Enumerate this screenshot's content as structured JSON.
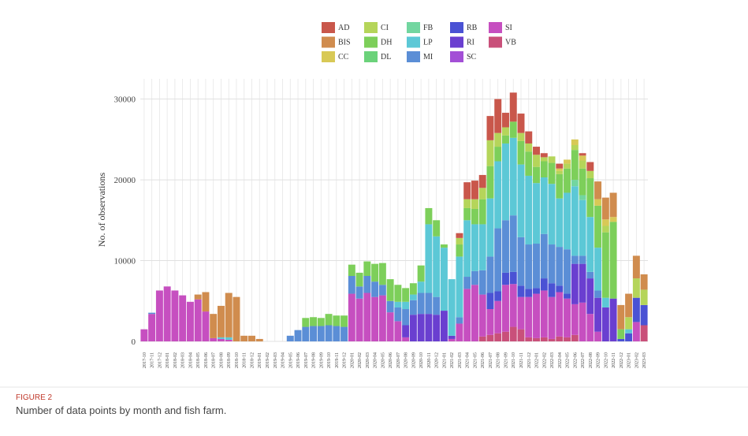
{
  "chart_data": {
    "type": "stacked_bar",
    "y_label": "No. of observations",
    "figure_label": "FIGURE 2",
    "caption": "Number of data points by month and fish farm.",
    "categories": [
      "2017-10",
      "2017-11",
      "2017-12",
      "2018-01",
      "2018-02",
      "2018-03",
      "2018-04",
      "2018-05",
      "2018-06",
      "2018-07",
      "2018-08",
      "2018-09",
      "2018-10",
      "2018-11",
      "2018-12",
      "2019-01",
      "2019-02",
      "2019-03",
      "2019-04",
      "2019-05",
      "2019-06",
      "2019-07",
      "2019-08",
      "2019-09",
      "2019-10",
      "2019-11",
      "2019-12",
      "2020-01",
      "2020-02",
      "2020-03",
      "2020-04",
      "2020-05",
      "2020-06",
      "2020-07",
      "2020-08",
      "2020-09",
      "2020-10",
      "2020-11",
      "2020-12",
      "2021-01",
      "2021-02",
      "2021-03",
      "2021-04",
      "2021-05",
      "2021-06",
      "2021-07",
      "2021-08",
      "2021-09",
      "2021-10",
      "2021-11",
      "2021-12",
      "2022-01",
      "2022-02",
      "2022-03",
      "2022-04",
      "2022-05",
      "2022-06",
      "2022-07",
      "2022-08",
      "2022-09",
      "2022-10",
      "2022-11",
      "2022-12",
      "2023-01",
      "2023-02",
      "2023-03"
    ],
    "ylim": [
      0,
      32500
    ],
    "yticks": [
      0,
      10000,
      20000,
      30000
    ],
    "grid": true,
    "series": [
      {
        "name": "AD",
        "color": "#c9574b",
        "values": [
          0,
          0,
          0,
          0,
          0,
          0,
          0,
          0,
          0,
          0,
          0,
          0,
          0,
          0,
          0,
          0,
          0,
          0,
          0,
          0,
          0,
          0,
          0,
          0,
          0,
          0,
          0,
          0,
          0,
          0,
          0,
          0,
          0,
          0,
          0,
          0,
          0,
          0,
          0,
          0,
          0,
          600,
          2100,
          2300,
          1600,
          3000,
          4200,
          1800,
          3600,
          2400,
          1500,
          1000,
          500,
          0,
          600,
          0,
          0,
          300,
          1100,
          0,
          0,
          0,
          0,
          0,
          0,
          0
        ]
      },
      {
        "name": "BIS",
        "color": "#d08c4e",
        "values": [
          0,
          0,
          0,
          0,
          0,
          0,
          0,
          600,
          2400,
          3000,
          3900,
          5500,
          5500,
          700,
          700,
          300,
          0,
          0,
          0,
          0,
          0,
          0,
          0,
          0,
          0,
          0,
          0,
          0,
          0,
          0,
          0,
          0,
          0,
          0,
          0,
          0,
          0,
          0,
          0,
          0,
          0,
          0,
          0,
          0,
          0,
          0,
          0,
          0,
          0,
          0,
          0,
          0,
          0,
          0,
          0,
          0,
          0,
          0,
          0,
          2200,
          2700,
          3000,
          3000,
          2900,
          2800,
          1900
        ]
      },
      {
        "name": "CC",
        "color": "#d8c956",
        "values": [
          0,
          0,
          0,
          0,
          0,
          0,
          0,
          0,
          0,
          0,
          0,
          0,
          0,
          0,
          0,
          0,
          0,
          0,
          0,
          0,
          0,
          0,
          0,
          0,
          0,
          0,
          0,
          0,
          0,
          0,
          0,
          0,
          0,
          0,
          0,
          0,
          0,
          0,
          0,
          0,
          0,
          0,
          0,
          0,
          0,
          0,
          0,
          0,
          0,
          0,
          0,
          0,
          0,
          0,
          300,
          500,
          700,
          600,
          0,
          800,
          800,
          600,
          0,
          0,
          0,
          0
        ]
      },
      {
        "name": "CI",
        "color": "#b5d55a",
        "values": [
          0,
          0,
          0,
          0,
          0,
          0,
          0,
          0,
          0,
          0,
          0,
          0,
          0,
          0,
          0,
          0,
          0,
          0,
          0,
          0,
          0,
          0,
          0,
          0,
          0,
          0,
          0,
          0,
          0,
          0,
          0,
          0,
          0,
          0,
          0,
          0,
          0,
          0,
          0,
          0,
          0,
          800,
          1100,
          1200,
          1400,
          3200,
          1700,
          1000,
          0,
          1000,
          1000,
          1500,
          500,
          800,
          400,
          600,
          600,
          1000,
          900,
          0,
          800,
          0,
          0,
          1500,
          2400,
          1900
        ]
      },
      {
        "name": "DH",
        "color": "#7dcf5a",
        "values": [
          0,
          0,
          0,
          0,
          0,
          0,
          0,
          0,
          0,
          0,
          0,
          0,
          0,
          0,
          0,
          0,
          0,
          0,
          0,
          0,
          0,
          1100,
          1100,
          1000,
          1400,
          1300,
          1400,
          1400,
          1700,
          1800,
          2200,
          2700,
          2700,
          2100,
          1700,
          1400,
          2000,
          2000,
          2000,
          400,
          0,
          1500,
          1500,
          1900,
          3100,
          4000,
          1800,
          1000,
          2000,
          2900,
          3000,
          2000,
          2000,
          2600,
          3000,
          3000,
          3700,
          3300,
          4800,
          5200,
          8100,
          9500,
          1200,
          0,
          0,
          0
        ]
      },
      {
        "name": "DL",
        "color": "#6bd27a",
        "values": [
          0,
          0,
          0,
          0,
          0,
          0,
          0,
          0,
          0,
          0,
          0,
          0,
          0,
          0,
          0,
          0,
          0,
          0,
          0,
          0,
          0,
          0,
          0,
          0,
          0,
          0,
          0,
          0,
          0,
          0,
          0,
          0,
          0,
          0,
          0,
          0,
          0,
          0,
          0,
          0,
          0,
          0,
          0,
          0,
          0,
          0,
          0,
          0,
          0,
          0,
          0,
          0,
          0,
          0,
          0,
          0,
          0,
          0,
          0,
          0,
          0,
          0,
          0,
          0,
          0,
          0
        ]
      },
      {
        "name": "FB",
        "color": "#72d6a0",
        "values": [
          0,
          0,
          0,
          0,
          0,
          0,
          0,
          0,
          0,
          0,
          0,
          0,
          0,
          0,
          0,
          0,
          0,
          0,
          0,
          0,
          0,
          0,
          0,
          0,
          0,
          0,
          0,
          0,
          0,
          0,
          0,
          0,
          0,
          0,
          0,
          0,
          0,
          0,
          0,
          0,
          0,
          0,
          0,
          0,
          0,
          0,
          0,
          0,
          0,
          0,
          0,
          0,
          0,
          0,
          0,
          0,
          800,
          600,
          0,
          0,
          0,
          0,
          0,
          0,
          0,
          0
        ]
      },
      {
        "name": "LP",
        "color": "#5cc8d6",
        "values": [
          0,
          0,
          0,
          0,
          0,
          0,
          0,
          0,
          0,
          0,
          200,
          300,
          0,
          0,
          0,
          0,
          0,
          0,
          0,
          0,
          0,
          0,
          0,
          0,
          0,
          0,
          0,
          0,
          0,
          0,
          0,
          0,
          0,
          700,
          900,
          700,
          1400,
          8500,
          7500,
          7800,
          7000,
          7500,
          7000,
          5800,
          5700,
          7200,
          8300,
          9500,
          9600,
          9000,
          8500,
          7500,
          7000,
          7500,
          6000,
          7000,
          8600,
          6900,
          6800,
          5300,
          1200,
          0,
          0,
          500,
          0,
          0
        ]
      },
      {
        "name": "MI",
        "color": "#5b8ed6",
        "values": [
          0,
          150,
          0,
          0,
          0,
          0,
          0,
          0,
          0,
          0,
          0,
          0,
          0,
          0,
          0,
          0,
          0,
          0,
          0,
          700,
          1400,
          1800,
          1900,
          1900,
          2000,
          1900,
          1800,
          2200,
          1500,
          2100,
          1900,
          1300,
          1400,
          1700,
          2000,
          1800,
          2600,
          2600,
          2200,
          0,
          0,
          800,
          1500,
          1700,
          3000,
          4500,
          7800,
          6500,
          7000,
          6000,
          5500,
          5500,
          5500,
          4800,
          4800,
          5500,
          1000,
          1000,
          800,
          900,
          0,
          0,
          0,
          0,
          0,
          0
        ]
      },
      {
        "name": "RB",
        "color": "#4a52d4",
        "values": [
          0,
          0,
          0,
          0,
          0,
          0,
          0,
          0,
          0,
          0,
          0,
          0,
          0,
          0,
          0,
          0,
          0,
          0,
          0,
          0,
          0,
          0,
          0,
          0,
          0,
          0,
          0,
          0,
          0,
          0,
          0,
          0,
          0,
          0,
          0,
          0,
          0,
          0,
          0,
          0,
          0,
          0,
          0,
          0,
          0,
          2000,
          1200,
          1500,
          1500,
          1400,
          1000,
          700,
          1500,
          1700,
          800,
          600,
          0,
          0,
          0,
          0,
          0,
          0,
          300,
          1000,
          3000,
          2500
        ]
      },
      {
        "name": "RI",
        "color": "#6a3fd0",
        "values": [
          0,
          0,
          0,
          0,
          0,
          0,
          0,
          0,
          0,
          0,
          0,
          0,
          0,
          0,
          0,
          0,
          0,
          0,
          0,
          0,
          0,
          0,
          0,
          0,
          0,
          0,
          0,
          0,
          0,
          0,
          0,
          0,
          0,
          0,
          1500,
          3300,
          3400,
          3400,
          3300,
          3800,
          400,
          0,
          0,
          0,
          0,
          0,
          0,
          0,
          0,
          0,
          0,
          0,
          0,
          0,
          0,
          0,
          5000,
          4800,
          4400,
          4200,
          4200,
          5300,
          0,
          0,
          0,
          0
        ]
      },
      {
        "name": "SC",
        "color": "#a34fd6",
        "values": [
          0,
          0,
          0,
          0,
          0,
          0,
          0,
          0,
          0,
          0,
          0,
          0,
          0,
          0,
          0,
          0,
          0,
          0,
          0,
          0,
          0,
          0,
          0,
          0,
          0,
          0,
          0,
          0,
          0,
          0,
          0,
          0,
          0,
          0,
          0,
          0,
          0,
          0,
          0,
          0,
          0,
          0,
          0,
          0,
          0,
          0,
          0,
          0,
          0,
          0,
          0,
          0,
          0,
          0,
          0,
          0,
          0,
          0,
          0,
          0,
          0,
          0,
          0,
          0,
          0,
          0
        ]
      },
      {
        "name": "SI",
        "color": "#c64fc0",
        "values": [
          1500,
          3400,
          6300,
          6800,
          6300,
          5700,
          4900,
          5200,
          3700,
          400,
          300,
          200,
          0,
          0,
          0,
          0,
          0,
          0,
          0,
          0,
          0,
          0,
          0,
          0,
          0,
          0,
          0,
          5900,
          5300,
          6000,
          5500,
          5700,
          3600,
          2500,
          500,
          0,
          0,
          0,
          0,
          0,
          300,
          2200,
          6500,
          7000,
          5200,
          3200,
          4000,
          5800,
          5300,
          4000,
          5000,
          5500,
          5800,
          5200,
          5500,
          4800,
          3800,
          4800,
          3400,
          1200,
          0,
          0,
          0,
          0,
          2400,
          0
        ]
      },
      {
        "name": "VB",
        "color": "#c9507a",
        "values": [
          0,
          0,
          0,
          0,
          0,
          0,
          0,
          0,
          0,
          0,
          0,
          0,
          0,
          0,
          0,
          0,
          0,
          0,
          0,
          0,
          0,
          0,
          0,
          0,
          0,
          0,
          0,
          0,
          0,
          0,
          0,
          0,
          0,
          0,
          0,
          0,
          0,
          0,
          0,
          0,
          0,
          0,
          0,
          0,
          600,
          800,
          1000,
          1200,
          1800,
          1500,
          500,
          400,
          500,
          300,
          600,
          500,
          800,
          0,
          0,
          0,
          0,
          0,
          0,
          0,
          0,
          2000
        ]
      }
    ]
  }
}
